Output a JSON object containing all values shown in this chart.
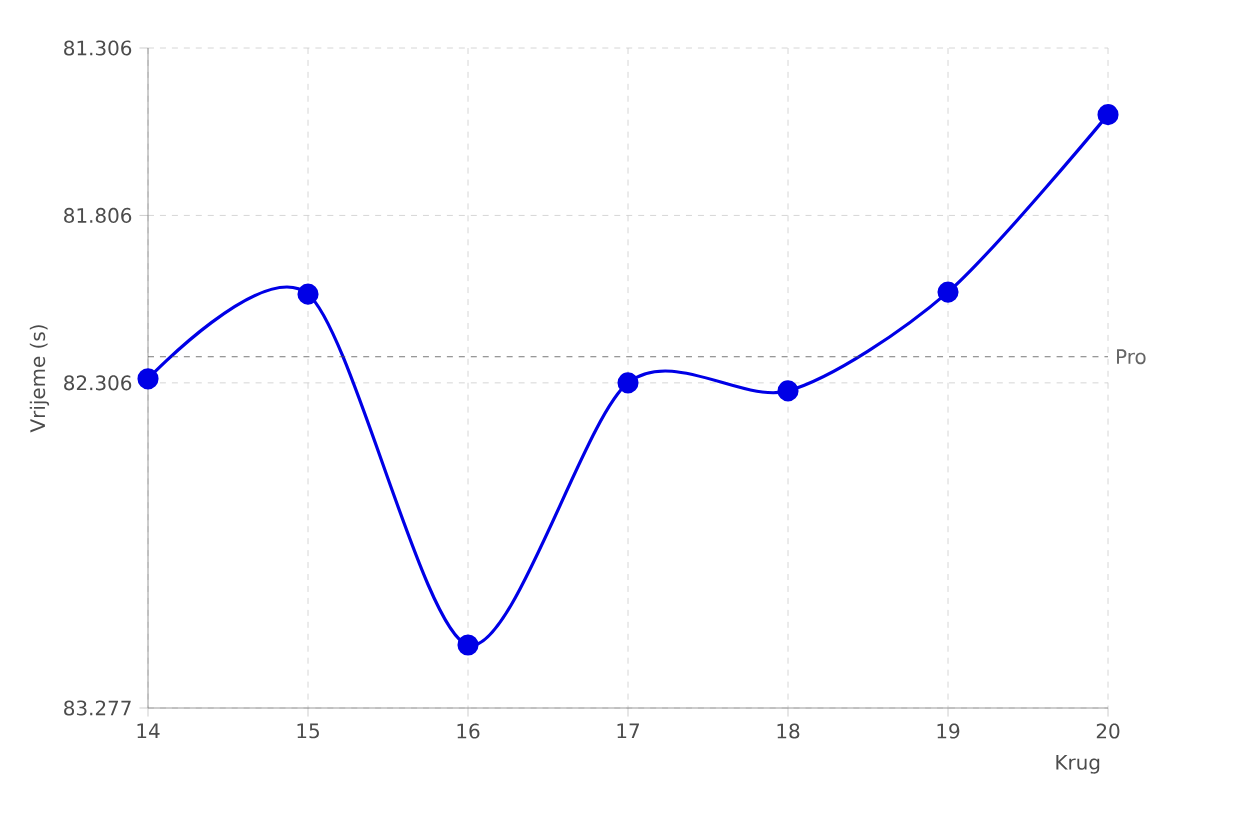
{
  "chart_data": {
    "type": "line",
    "xlabel": "Krug",
    "ylabel": "Vrijeme (s)",
    "x": [
      14,
      15,
      16,
      17,
      18,
      19,
      20
    ],
    "series": [
      {
        "color": "#0000e6",
        "values": [
          82.294,
          82.041,
          83.089,
          82.306,
          82.33,
          82.035,
          81.505
        ]
      }
    ],
    "xlim": [
      14,
      20
    ],
    "ylim": [
      83.277,
      81.306
    ],
    "xticks": [
      14,
      15,
      16,
      17,
      18,
      19,
      20
    ],
    "yticks": [
      81.306,
      81.806,
      82.306,
      83.277
    ],
    "ref_lines": [
      {
        "axis": "y",
        "value": 82.228,
        "label": "Pro",
        "color": "#555555",
        "line_style": "dashed"
      }
    ],
    "grid": true,
    "marker": "circle",
    "line_style": "solid"
  }
}
